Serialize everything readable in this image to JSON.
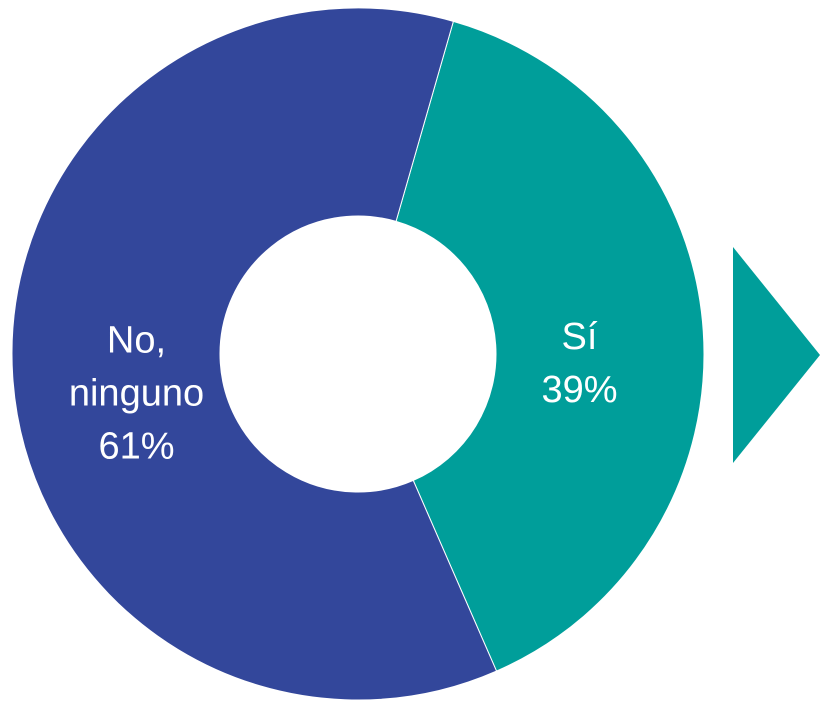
{
  "chart_data": {
    "type": "pie",
    "donut": true,
    "categories": [
      "Sí",
      "No, ninguno"
    ],
    "values": [
      39,
      61
    ],
    "value_labels": [
      "39%",
      "61%"
    ],
    "colors": [
      "#009e9a",
      "#33479b"
    ]
  }
}
